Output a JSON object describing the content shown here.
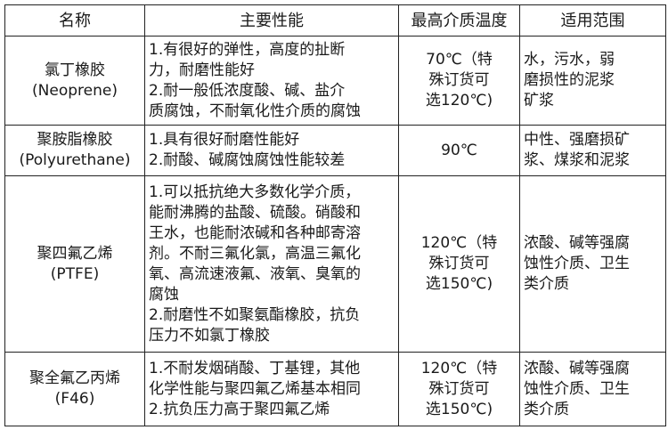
{
  "headers": [
    "名称",
    "主要性能",
    "最高介质温度",
    "适用范围"
  ],
  "rows": [
    {
      "name": "氯丁橡胶\n(Neoprene)",
      "performance": "1.有很好的弹性，高度的扯断\n力，耐磨性能好\n2.耐一般低浓度酸、碱、盐介\n质腐蚀，不耐氧化性介质的腐蚀",
      "max_temp": "70℃（特\n殊订货可\n选120℃)",
      "application": "水，污水，弱\n磨损性的泥浆\n矿浆"
    },
    {
      "name": "聚胺脂橡胶\n(Polyurethane)",
      "performance": "1.具有很好耐磨性能好\n2.耐酸、碱腐蚀腐蚀性能较差",
      "max_temp": "90℃",
      "application": "中性、强磨损矿\n浆、煤浆和泥浆"
    },
    {
      "name": "聚四氟乙烯\n(PTFE)",
      "performance": "1.可以抵抗绝大多数化学介质，\n能耐沸腾的盐酸、硫酸。硝酸和\n王水，也能耐浓碱和各种邮寄溶\n剂。不耐三氟化氯，高温三氟化\n氧、高流速液氟、液氧、臭氧的\n腐蚀\n2.耐磨性不如聚氨酯橡胶，抗负\n压力不如氯丁橡胶",
      "max_temp": "120℃（特\n殊订货可\n选150℃)",
      "application": "浓酸、碱等强腐\n蚀性介质、卫生\n类介质"
    },
    {
      "name": "聚全氟乙丙烯\n(F46)",
      "performance": "1.不耐发烟硝酸、丁基锂，其他\n化学性能与聚四氟乙烯基本相同\n2.抗负压力高于聚四氟乙烯",
      "max_temp": "120℃（特\n殊订货可\n选150℃)",
      "application": "浓酸、碱等强腐\n蚀性介质、卫生\n类介质"
    }
  ]
}
